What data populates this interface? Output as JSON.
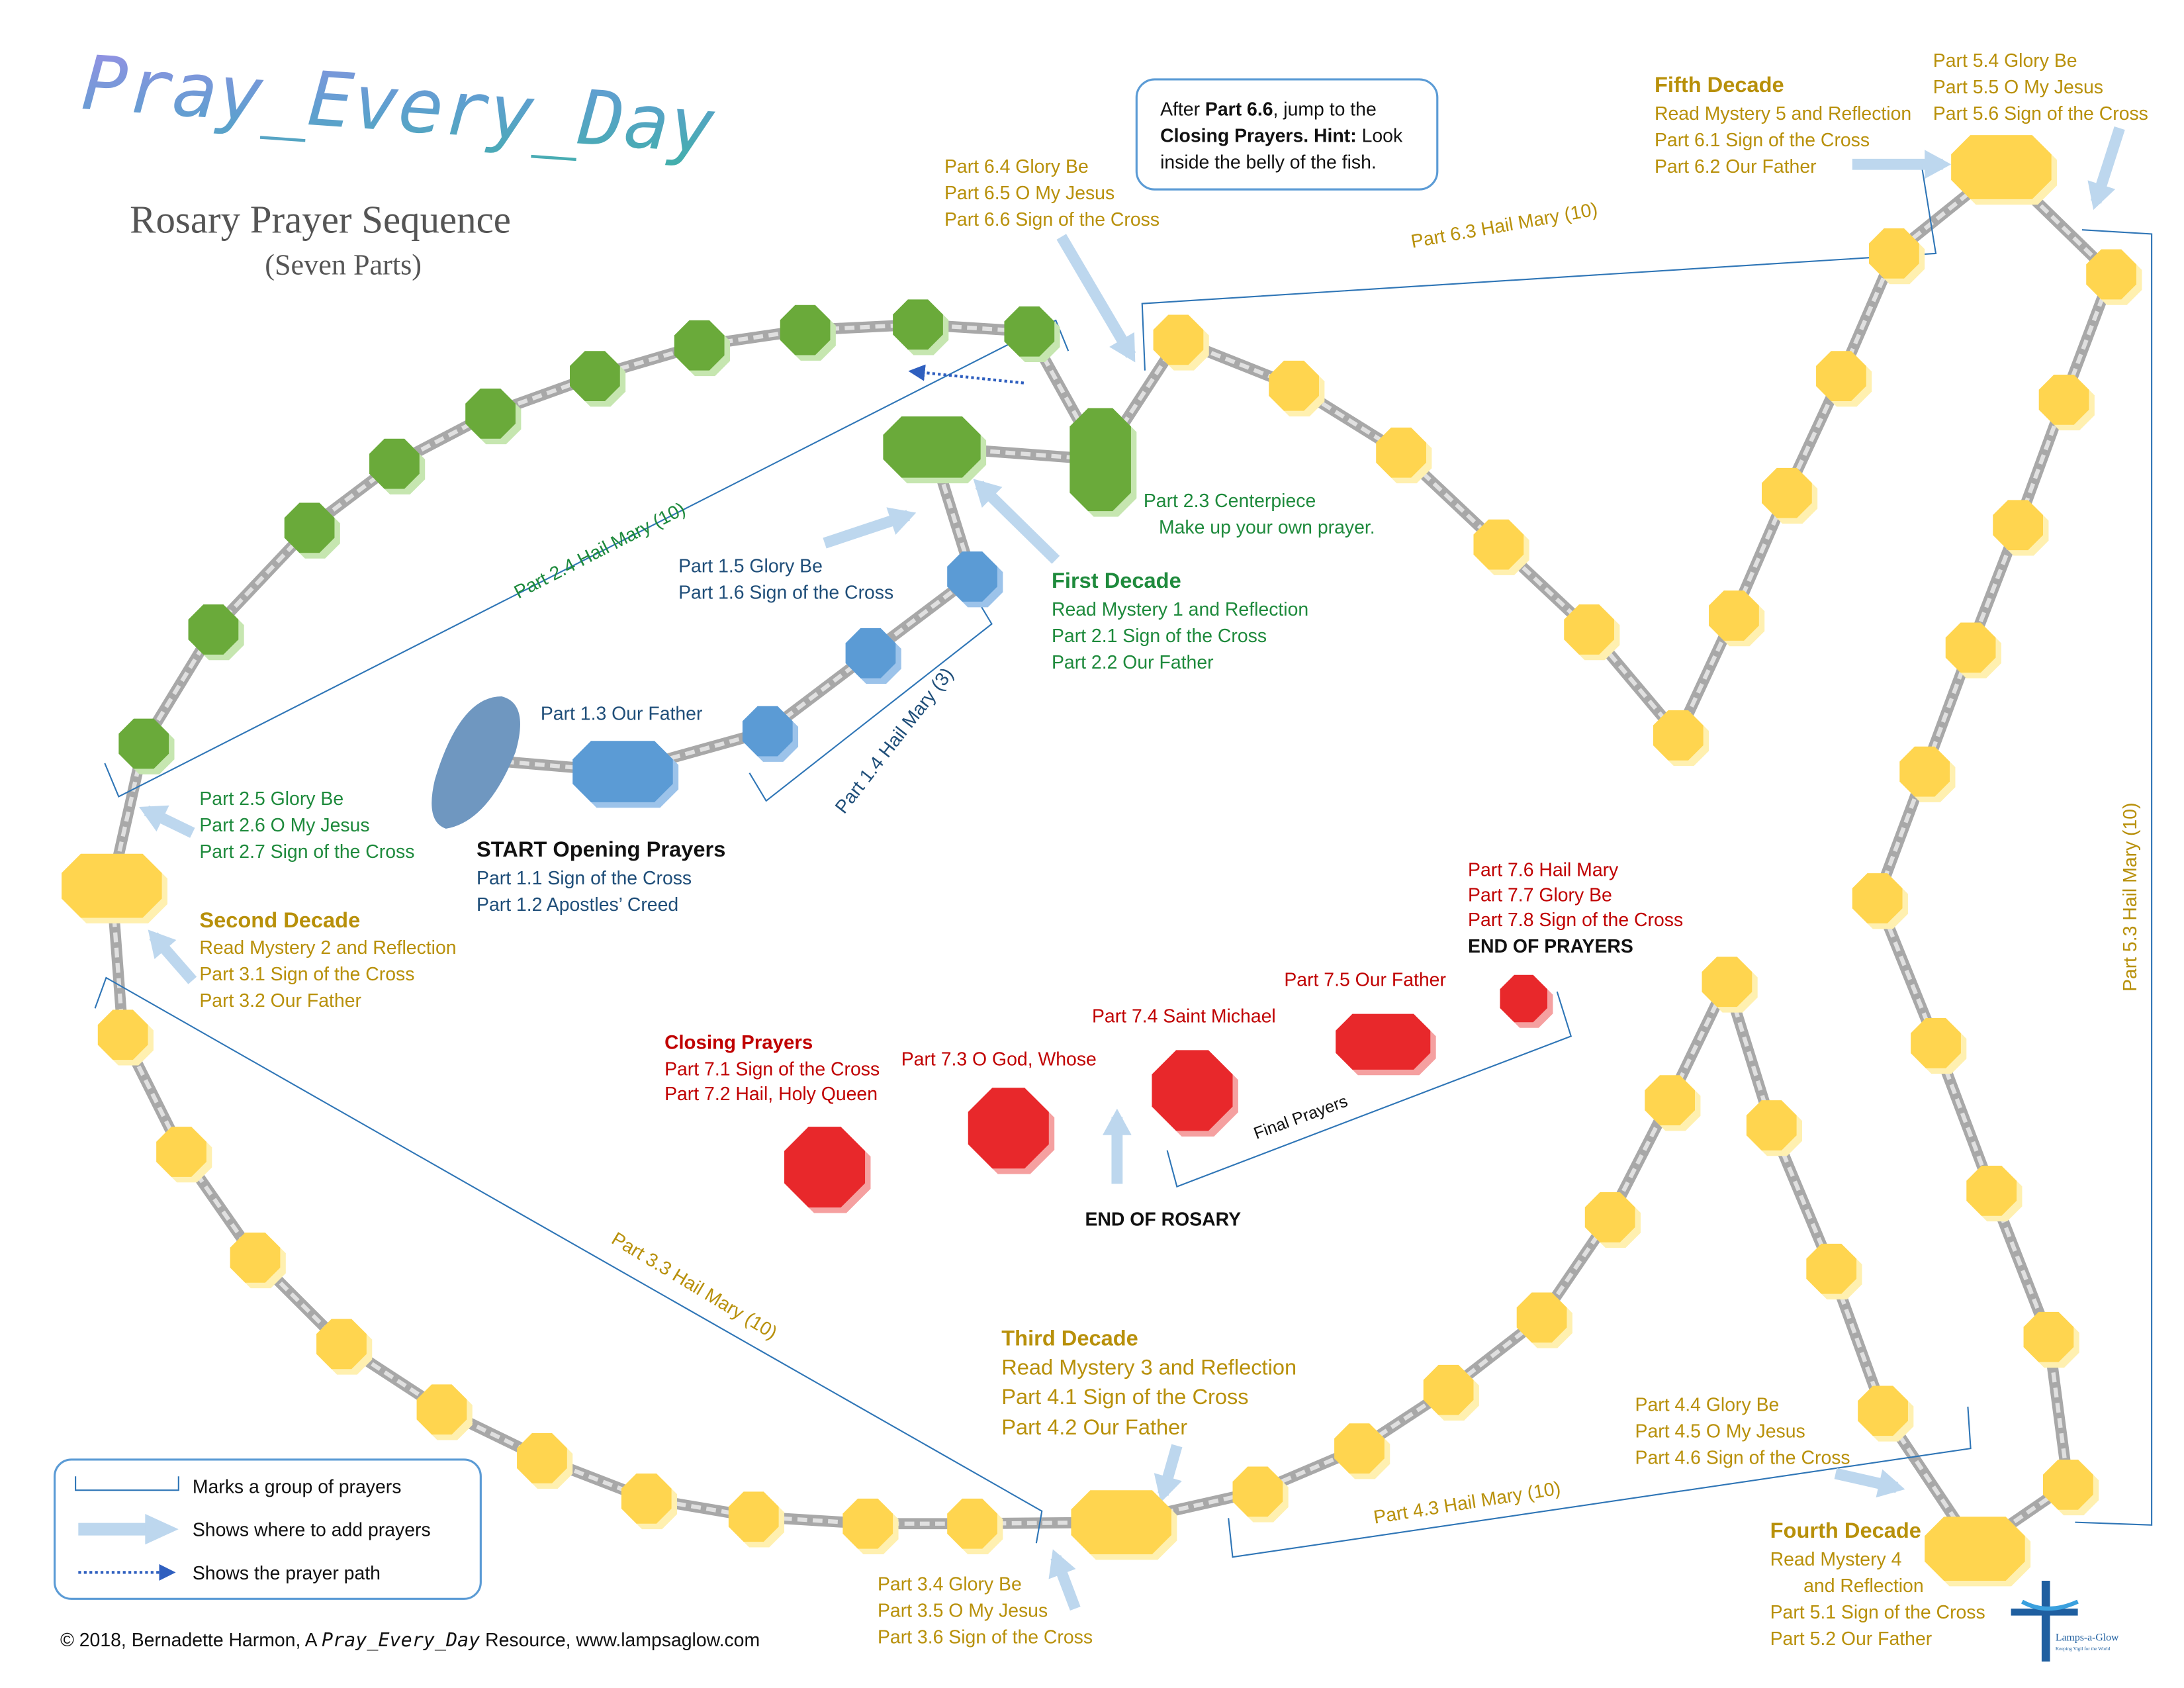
{
  "header": {
    "logo_text": "Pray_Every_Day",
    "title": "Rosary Prayer Sequence",
    "subtitle": "(Seven Parts)"
  },
  "note": {
    "t1": "After ",
    "t2": "Part 6.6",
    "t3": ", jump to the",
    "t4": "Closing Prayers. Hint:",
    "t5": " Look",
    "t6": "inside the belly of the fish."
  },
  "start": {
    "heading": "START  Opening Prayers",
    "p11": "Part 1.1  Sign of the Cross",
    "p12": "Part 1.2  Apostles’ Creed",
    "p13": "Part 1.3  Our Father",
    "p14": "Part 1.4  Hail Mary (3)",
    "p15": "Part 1.5  Glory Be",
    "p16": "Part 1.6  Sign of the Cross"
  },
  "first": {
    "heading": "First Decade",
    "l1": "Read Mystery 1 and Reflection",
    "l2": "Part 2.1  Sign of the Cross",
    "l3": "Part 2.2  Our Father",
    "p23a": "Part 2.3  Centerpiece",
    "p23b": "Make up your own prayer.",
    "p24": "Part 2.4  Hail Mary (10)",
    "p25": "Part 2.5  Glory Be",
    "p26": "Part 2.6  O My Jesus",
    "p27": "Part 2.7  Sign of the Cross"
  },
  "second": {
    "heading": "Second Decade",
    "l1": "Read Mystery 2 and Reflection",
    "l2": "Part 3.1  Sign of the Cross",
    "l3": "Part 3.2  Our Father",
    "p33": "Part 3.3  Hail Mary (10)",
    "p34": "Part 3.4  Glory Be",
    "p35": "Part 3.5  O My Jesus",
    "p36": "Part 3.6  Sign of the Cross"
  },
  "third": {
    "heading": "Third Decade",
    "l1": "Read Mystery 3 and Reflection",
    "l2": "Part 4.1  Sign of the Cross",
    "l3": "Part 4.2  Our Father",
    "p43": "Part 4.3  Hail Mary (10)",
    "p44": "Part 4.4  Glory Be",
    "p45": "Part 4.5  O My Jesus",
    "p46": "Part 4.6  Sign of the Cross"
  },
  "fourth": {
    "heading": "Fourth Decade",
    "l1": "Read Mystery 4",
    "l1b": "and Reflection",
    "l2": "Part 5.1  Sign of the Cross",
    "l3": "Part 5.2  Our Father",
    "p53": "Part 5.3  Hail Mary (10)",
    "p54": "Part 5.4  Glory Be",
    "p55": "Part 5.5  O My Jesus",
    "p56": "Part 5.6  Sign of the Cross"
  },
  "fifth": {
    "heading": "Fifth Decade",
    "l1": "Read Mystery 5 and Reflection",
    "l2": "Part 6.1  Sign of the Cross",
    "l3": "Part 6.2  Our Father",
    "p63": "Part 6.3  Hail Mary (10)",
    "p64": "Part 6.4  Glory Be",
    "p65": "Part 6.5  O My Jesus",
    "p66": "Part 6.6  Sign of the Cross"
  },
  "closing": {
    "heading": "Closing Prayers",
    "p71": "Part 7.1  Sign of the Cross",
    "p72": "Part 7.2  Hail, Holy Queen",
    "p73": "Part 7.3  O God, Whose",
    "p74": "Part 7.4  Saint Michael",
    "p75": "Part 7.5  Our Father",
    "p76": "Part 7.6  Hail Mary",
    "p77": "Part 7.7  Glory Be",
    "p78": "Part 7.8  Sign of the Cross",
    "end_prayers": "END OF PRAYERS",
    "end_rosary": "END OF ROSARY",
    "final": "Final Prayers"
  },
  "legend": {
    "group": "Marks a group of prayers",
    "add": "Shows where to add prayers",
    "path": "Shows the prayer path"
  },
  "footer": {
    "pre": "© 2018, Bernadette Harmon, A ",
    "brand": "Pray_Every_Day",
    "post": " Resource, www.lampsaglow.com"
  },
  "logo2": {
    "name": "Lamps-a-Glow",
    "tagline": "Keeping Vigil for the World"
  },
  "colors": {
    "gold": "#ffd54f",
    "green": "#6aaa3a",
    "blue": "#5b9bd5",
    "red": "#e8282b",
    "chain": "#bdbdbd",
    "line": "#2e75b6",
    "arrow": "#bdd7ee"
  }
}
